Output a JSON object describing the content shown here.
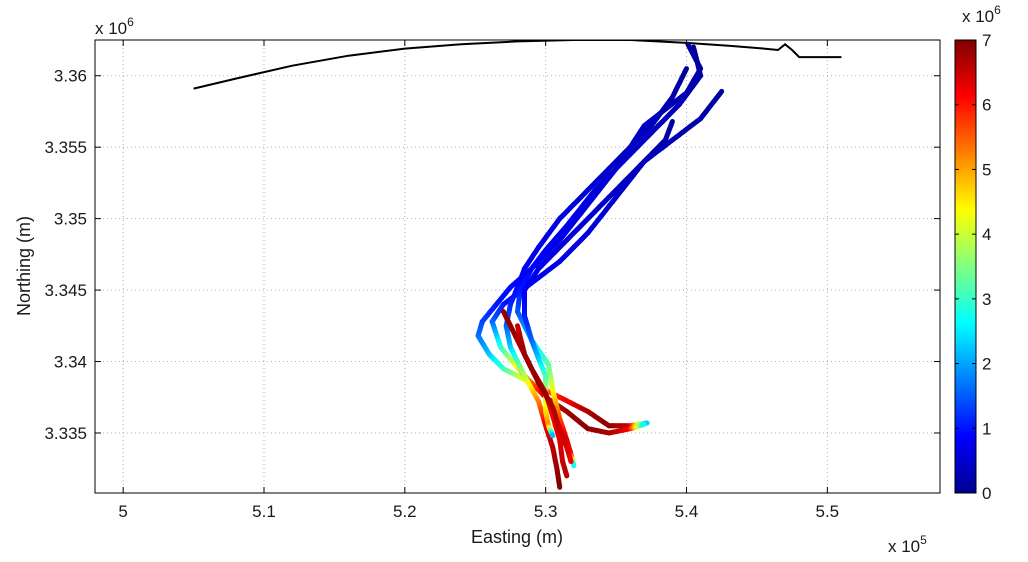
{
  "chart_data": {
    "type": "line",
    "title": "",
    "xlabel": "Easting (m)",
    "ylabel": "Northing (m)",
    "x_multiplier_label": "x 10",
    "x_multiplier_exponent": "5",
    "y_multiplier_label": "x 10",
    "y_multiplier_exponent": "6",
    "xlim": [
      4.98,
      5.58
    ],
    "ylim": [
      3.3308,
      3.3625
    ],
    "xticks": [
      5,
      5.1,
      5.2,
      5.3,
      5.4,
      5.5
    ],
    "xtick_labels": [
      "5",
      "5.1",
      "5.2",
      "5.3",
      "5.4",
      "5.5"
    ],
    "yticks": [
      3.335,
      3.34,
      3.345,
      3.35,
      3.355,
      3.36
    ],
    "ytick_labels": [
      "3.335",
      "3.34",
      "3.345",
      "3.35",
      "3.355",
      "3.36"
    ],
    "grid": true,
    "grid_style": "dotted",
    "colorbar": {
      "range": [
        0,
        7
      ],
      "ticks": [
        0,
        1,
        2,
        3,
        4,
        5,
        6,
        7
      ],
      "tick_labels": [
        "0",
        "1",
        "2",
        "3",
        "4",
        "5",
        "6",
        "7"
      ],
      "multiplier_label": "x 10",
      "multiplier_exponent": "6",
      "colormap": "jet"
    },
    "coastline": [
      [
        5.05,
        3.3591
      ],
      [
        5.08,
        3.3598
      ],
      [
        5.12,
        3.3607
      ],
      [
        5.16,
        3.3614
      ],
      [
        5.2,
        3.3619
      ],
      [
        5.24,
        3.3622
      ],
      [
        5.28,
        3.3624
      ],
      [
        5.32,
        3.3625
      ],
      [
        5.36,
        3.3625
      ],
      [
        5.4,
        3.3623
      ],
      [
        5.43,
        3.3621
      ],
      [
        5.455,
        3.3619
      ],
      [
        5.465,
        3.3618
      ],
      [
        5.47,
        3.3622
      ],
      [
        5.475,
        3.3618
      ],
      [
        5.48,
        3.3613
      ],
      [
        5.5,
        3.3613
      ],
      [
        5.51,
        3.3613
      ]
    ],
    "series": [
      {
        "points": [
          [
            5.401,
            3.3622,
            0.1
          ],
          [
            5.41,
            3.3605,
            0.2
          ],
          [
            5.4,
            3.3588,
            0.3
          ],
          [
            5.37,
            3.3565,
            0.4
          ],
          [
            5.35,
            3.3535,
            0.5
          ],
          [
            5.33,
            3.351,
            0.6
          ],
          [
            5.31,
            3.3485,
            0.7
          ],
          [
            5.29,
            3.3465,
            0.8
          ],
          [
            5.275,
            3.3452,
            0.9
          ],
          [
            5.265,
            3.344,
            1.0
          ],
          [
            5.255,
            3.3428,
            1.3
          ],
          [
            5.252,
            3.3418,
            1.6
          ],
          [
            5.26,
            3.3405,
            2.2
          ],
          [
            5.27,
            3.3395,
            3.0
          ],
          [
            5.29,
            3.3385,
            4.5
          ],
          [
            5.31,
            3.3375,
            6.0
          ],
          [
            5.33,
            3.3365,
            6.7
          ],
          [
            5.345,
            3.3355,
            6.9
          ],
          [
            5.36,
            3.3355,
            6.5
          ],
          [
            5.372,
            3.3357,
            2.0
          ]
        ]
      },
      {
        "points": [
          [
            5.425,
            3.3589,
            0.1
          ],
          [
            5.41,
            3.357,
            0.2
          ],
          [
            5.39,
            3.3555,
            0.3
          ],
          [
            5.37,
            3.354,
            0.4
          ],
          [
            5.35,
            3.3515,
            0.5
          ],
          [
            5.33,
            3.349,
            0.6
          ],
          [
            5.31,
            3.347,
            0.7
          ],
          [
            5.29,
            3.3455,
            0.8
          ],
          [
            5.27,
            3.344,
            1.0
          ],
          [
            5.262,
            3.3428,
            1.5
          ],
          [
            5.268,
            3.341,
            2.8
          ],
          [
            5.285,
            3.339,
            5.0
          ],
          [
            5.3,
            3.3375,
            6.3
          ],
          [
            5.315,
            3.3365,
            6.8
          ],
          [
            5.33,
            3.3353,
            6.9
          ],
          [
            5.345,
            3.335,
            6.7
          ],
          [
            5.36,
            3.3353,
            6.2
          ],
          [
            5.37,
            3.3356,
            2.5
          ]
        ]
      },
      {
        "points": [
          [
            5.4,
            3.3605,
            0.1
          ],
          [
            5.39,
            3.3585,
            0.2
          ],
          [
            5.375,
            3.3565,
            0.3
          ],
          [
            5.35,
            3.354,
            0.4
          ],
          [
            5.33,
            3.352,
            0.5
          ],
          [
            5.31,
            3.35,
            0.6
          ],
          [
            5.295,
            3.348,
            0.7
          ],
          [
            5.285,
            3.3465,
            0.8
          ],
          [
            5.28,
            3.3452,
            0.9
          ],
          [
            5.275,
            3.344,
            1.1
          ],
          [
            5.272,
            3.3425,
            1.5
          ],
          [
            5.275,
            3.341,
            2.2
          ],
          [
            5.285,
            3.339,
            3.8
          ],
          [
            5.295,
            3.3372,
            5.2
          ],
          [
            5.3,
            3.3355,
            6.2
          ],
          [
            5.305,
            3.334,
            6.6
          ],
          [
            5.308,
            3.3325,
            6.8
          ],
          [
            5.31,
            3.3312,
            7.0
          ]
        ]
      },
      {
        "points": [
          [
            5.405,
            3.362,
            0.1
          ],
          [
            5.41,
            3.36,
            0.2
          ],
          [
            5.395,
            3.358,
            0.3
          ],
          [
            5.375,
            3.356,
            0.4
          ],
          [
            5.355,
            3.354,
            0.5
          ],
          [
            5.335,
            3.352,
            0.6
          ],
          [
            5.315,
            3.3495,
            0.7
          ],
          [
            5.3,
            3.3478,
            0.8
          ],
          [
            5.29,
            3.3465,
            0.9
          ],
          [
            5.282,
            3.345,
            1.0
          ],
          [
            5.28,
            3.3435,
            1.4
          ],
          [
            5.29,
            3.3415,
            2.2
          ],
          [
            5.302,
            3.3398,
            3.2
          ],
          [
            5.305,
            3.338,
            4.2
          ],
          [
            5.31,
            3.336,
            5.6
          ],
          [
            5.315,
            3.3345,
            6.4
          ],
          [
            5.318,
            3.3335,
            6.2
          ],
          [
            5.32,
            3.3327,
            2.5
          ]
        ]
      },
      {
        "points": [
          [
            5.39,
            3.3568,
            0.1
          ],
          [
            5.385,
            3.3555,
            0.2
          ],
          [
            5.37,
            3.354,
            0.3
          ],
          [
            5.35,
            3.352,
            0.4
          ],
          [
            5.33,
            3.35,
            0.5
          ],
          [
            5.31,
            3.348,
            0.6
          ],
          [
            5.295,
            3.3465,
            0.7
          ],
          [
            5.285,
            3.345,
            0.8
          ],
          [
            5.285,
            3.3432,
            1.0
          ],
          [
            5.29,
            3.3415,
            1.5
          ],
          [
            5.295,
            3.3402,
            2.2
          ],
          [
            5.3,
            3.339,
            3.0
          ],
          [
            5.3,
            3.3378,
            3.8
          ],
          [
            5.3,
            3.3365,
            4.5
          ],
          [
            5.302,
            3.3355,
            5.2
          ],
          [
            5.305,
            3.3348,
            2.0
          ]
        ]
      },
      {
        "points": [
          [
            5.27,
            3.3435,
            6.9
          ],
          [
            5.28,
            3.3415,
            6.8
          ],
          [
            5.29,
            3.3395,
            6.6
          ],
          [
            5.3,
            3.3378,
            6.4
          ],
          [
            5.305,
            3.3362,
            6.2
          ],
          [
            5.31,
            3.3345,
            6.3
          ],
          [
            5.312,
            3.333,
            6.5
          ],
          [
            5.315,
            3.332,
            6.6
          ]
        ]
      },
      {
        "points": [
          [
            5.28,
            3.3425,
            6.5
          ],
          [
            5.285,
            3.3405,
            6.8
          ],
          [
            5.295,
            3.3385,
            6.9
          ],
          [
            5.305,
            3.3368,
            6.7
          ],
          [
            5.31,
            3.3352,
            6.5
          ],
          [
            5.315,
            3.334,
            6.4
          ],
          [
            5.318,
            3.333,
            6.2
          ]
        ]
      }
    ]
  }
}
